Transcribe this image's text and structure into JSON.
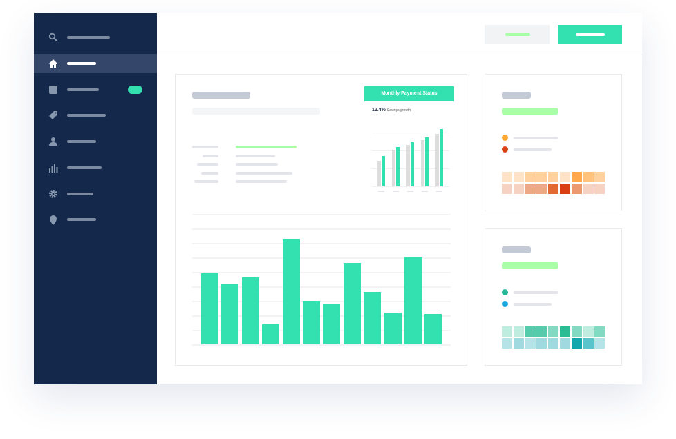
{
  "sidebar": {
    "items": [
      {
        "icon": "search-icon",
        "active": false
      },
      {
        "icon": "home-icon",
        "active": true
      },
      {
        "icon": "square-icon",
        "active": false,
        "badge": true
      },
      {
        "icon": "tag-icon",
        "active": false
      },
      {
        "icon": "user-icon",
        "active": false
      },
      {
        "icon": "bar-chart-icon",
        "active": false
      },
      {
        "icon": "gear-icon",
        "active": false
      },
      {
        "icon": "location-pin-icon",
        "active": false
      }
    ]
  },
  "colors": {
    "sidebar": "#13284a",
    "accent": "#33e0b0",
    "light_green": "#a8ffa8",
    "orange_dot": "#ffa733",
    "red_dot": "#db4115",
    "teal_dot": "#27b89a",
    "blue_dot": "#17a9de"
  },
  "mini_chart": {
    "title": "Monthly Payment Status",
    "stat_value": "12.4%",
    "stat_label": "Savings growth"
  },
  "chart_data": [
    {
      "type": "bar",
      "title": "",
      "xlabel": "",
      "ylabel": "",
      "ylim": [
        0,
        9
      ],
      "grid": true,
      "values": [
        4.9,
        4.2,
        4.6,
        1.4,
        7.3,
        3.0,
        2.8,
        5.6,
        3.6,
        2.2,
        6.0,
        2.1
      ]
    },
    {
      "type": "bar",
      "title": "Monthly Payment Status",
      "ylim": [
        0,
        4
      ],
      "grid": true,
      "series": [
        {
          "values": [
            1.6,
            2.3,
            2.6,
            2.9,
            3.3
          ],
          "color": "#dddddd"
        },
        {
          "values": [
            1.9,
            2.5,
            2.8,
            3.1,
            3.6
          ],
          "color": "#33e0b0"
        }
      ]
    }
  ],
  "heatmaps": {
    "orange": [
      [
        "#ffe3c6",
        "#ffe3c6",
        "#ffd19e",
        "#ffd19e",
        "#ffd19e",
        "#ffe3c6",
        "#ffa94a",
        "#ffc37e",
        "#ffd19e"
      ],
      [
        "#f6d2c2",
        "#f6d2c2",
        "#eda886",
        "#eda886",
        "#e36a32",
        "#d93f13",
        "#ec9970",
        "#f6d2c2",
        "#f6d2c2"
      ]
    ],
    "teal": [
      [
        "#c0ebdf",
        "#c0ebdf",
        "#55cbab",
        "#55cbab",
        "#82dac2",
        "#2bbc93",
        "#82dac2",
        "#c0ebdf",
        "#82dac2"
      ],
      [
        "#b5e3e7",
        "#a0dae0",
        "#b5e3e7",
        "#a0dae0",
        "#a0dae0",
        "#a0dae0",
        "#12a7ad",
        "#59c4cb",
        "#b5e3e7"
      ]
    ]
  }
}
